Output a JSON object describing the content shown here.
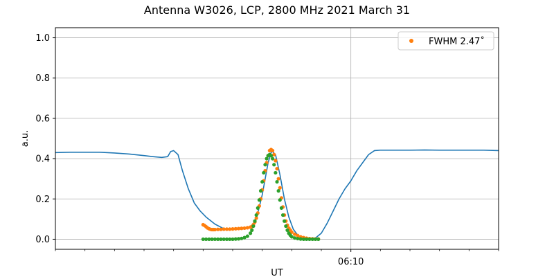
{
  "chart_data": {
    "type": "line",
    "title": "Antenna W3026, LCP, 2800 MHz 2021 March 31",
    "xlabel": "UT",
    "ylabel": "a.u.",
    "xlim": [
      0,
      15
    ],
    "ylim": [
      -0.05,
      1.05
    ],
    "x_units": "minutes after 06:00 UT",
    "x_ticks": [
      {
        "x": 10,
        "label": "06:10"
      }
    ],
    "y_ticks": [
      0.0,
      0.2,
      0.4,
      0.6,
      0.8,
      1.0
    ],
    "y_tick_labels": [
      "0.0",
      "0.2",
      "0.4",
      "0.6",
      "0.8",
      "1.0"
    ],
    "grid": true,
    "legend": {
      "position": "top-right",
      "entries": [
        {
          "label": "FWHM 2.47$^\\circ$",
          "display": "FWHM 2.47˚",
          "color": "#ff7f0e"
        }
      ]
    },
    "colors": {
      "signal": "#1f77b4",
      "fit_orange": "#ff7f0e",
      "fit_green": "#2ca02c",
      "grid": "#b0b0b0"
    },
    "series": [
      {
        "kind": "line",
        "color": "#1f77b4",
        "x": [
          0,
          0.5,
          1.0,
          1.5,
          2.0,
          2.5,
          3.0,
          3.3,
          3.6,
          3.8,
          3.9,
          4.0,
          4.15,
          4.3,
          4.5,
          4.7,
          4.9,
          5.1,
          5.4,
          5.7,
          5.9,
          6.1,
          6.4,
          6.6,
          6.8,
          7.0,
          7.1,
          7.2,
          7.3,
          7.35,
          7.45,
          7.6,
          7.75,
          7.9,
          8.05,
          8.2,
          8.4,
          8.6,
          8.8,
          9.0,
          9.2,
          9.4,
          9.6,
          9.8,
          10.0,
          10.2,
          10.4,
          10.6,
          10.8,
          11.0,
          11.5,
          12.0,
          12.5,
          13.0,
          13.5,
          14.0,
          14.5,
          15.0
        ],
        "y": [
          0.43,
          0.432,
          0.432,
          0.432,
          0.428,
          0.423,
          0.415,
          0.41,
          0.406,
          0.41,
          0.435,
          0.44,
          0.42,
          0.34,
          0.25,
          0.18,
          0.14,
          0.11,
          0.075,
          0.052,
          0.05,
          0.05,
          0.052,
          0.06,
          0.1,
          0.22,
          0.3,
          0.38,
          0.43,
          0.435,
          0.42,
          0.32,
          0.2,
          0.11,
          0.05,
          0.02,
          0.006,
          0.002,
          0.006,
          0.03,
          0.08,
          0.14,
          0.2,
          0.25,
          0.29,
          0.34,
          0.38,
          0.42,
          0.44,
          0.442,
          0.442,
          0.442,
          0.443,
          0.442,
          0.442,
          0.442,
          0.442,
          0.44
        ]
      },
      {
        "kind": "scatter",
        "color": "#ff7f0e",
        "x": [
          5.0,
          5.05,
          5.1,
          5.15,
          5.2,
          5.25,
          5.3,
          5.35,
          5.4,
          5.5,
          5.6,
          5.7,
          5.8,
          5.9,
          6.0,
          6.1,
          6.2,
          6.3,
          6.4,
          6.5,
          6.6,
          6.65,
          6.7,
          6.75,
          6.8,
          6.85,
          6.9,
          6.95,
          7.0,
          7.05,
          7.1,
          7.15,
          7.2,
          7.25,
          7.3,
          7.35,
          7.4,
          7.45,
          7.5,
          7.55,
          7.6,
          7.65,
          7.7,
          7.75,
          7.8,
          7.85,
          7.9,
          7.95,
          8.0,
          8.1,
          8.2,
          8.3,
          8.4,
          8.5,
          8.6,
          8.7,
          8.8,
          8.9
        ],
        "y": [
          0.072,
          0.068,
          0.062,
          0.056,
          0.052,
          0.049,
          0.048,
          0.048,
          0.048,
          0.049,
          0.049,
          0.05,
          0.05,
          0.05,
          0.051,
          0.052,
          0.053,
          0.054,
          0.055,
          0.057,
          0.06,
          0.063,
          0.072,
          0.085,
          0.105,
          0.13,
          0.165,
          0.2,
          0.245,
          0.29,
          0.34,
          0.38,
          0.415,
          0.44,
          0.445,
          0.44,
          0.42,
          0.39,
          0.35,
          0.3,
          0.255,
          0.205,
          0.16,
          0.12,
          0.09,
          0.07,
          0.055,
          0.045,
          0.035,
          0.025,
          0.018,
          0.012,
          0.008,
          0.005,
          0.003,
          0.002,
          0.001,
          0.001
        ]
      },
      {
        "kind": "scatter",
        "color": "#2ca02c",
        "x": [
          5.0,
          5.1,
          5.2,
          5.3,
          5.4,
          5.5,
          5.6,
          5.7,
          5.8,
          5.9,
          6.0,
          6.1,
          6.2,
          6.3,
          6.4,
          6.5,
          6.6,
          6.65,
          6.7,
          6.75,
          6.8,
          6.85,
          6.9,
          6.95,
          7.0,
          7.05,
          7.1,
          7.15,
          7.2,
          7.25,
          7.3,
          7.35,
          7.4,
          7.45,
          7.5,
          7.55,
          7.6,
          7.65,
          7.7,
          7.75,
          7.8,
          7.85,
          7.9,
          7.95,
          8.0,
          8.1,
          8.2,
          8.3,
          8.4,
          8.5,
          8.6,
          8.7,
          8.8,
          8.9
        ],
        "y": [
          0,
          0,
          0,
          0,
          0,
          0,
          0,
          0,
          0,
          0,
          0,
          0.001,
          0.002,
          0.004,
          0.008,
          0.015,
          0.03,
          0.045,
          0.065,
          0.09,
          0.12,
          0.155,
          0.195,
          0.24,
          0.285,
          0.33,
          0.37,
          0.4,
          0.415,
          0.42,
          0.415,
          0.4,
          0.37,
          0.33,
          0.285,
          0.24,
          0.195,
          0.155,
          0.12,
          0.09,
          0.065,
          0.045,
          0.03,
          0.02,
          0.012,
          0.006,
          0.003,
          0.001,
          0,
          0,
          0,
          0,
          0,
          0
        ]
      }
    ]
  }
}
